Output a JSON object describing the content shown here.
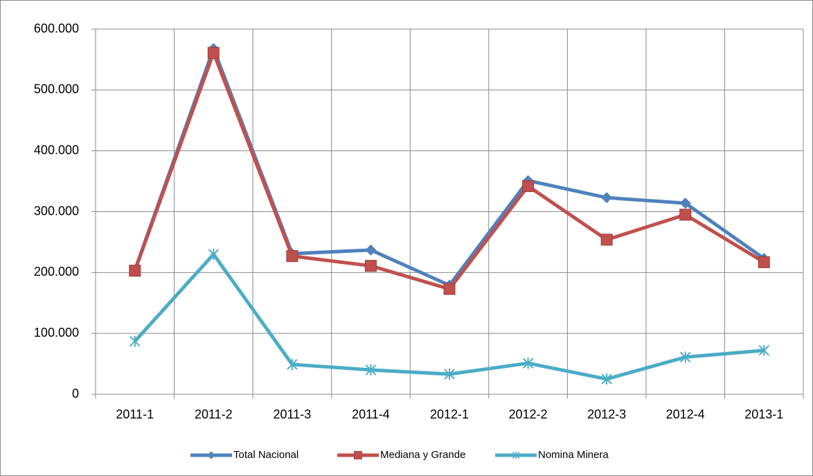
{
  "chart_data": {
    "type": "line",
    "categories": [
      "2011-1",
      "2011-2",
      "2011-3",
      "2011-4",
      "2012-1",
      "2012-2",
      "2012-3",
      "2012-4",
      "2013-1"
    ],
    "series": [
      {
        "name": "Total Nacional",
        "color": "#4f81bd",
        "marker": "diamond",
        "values": [
          204000,
          568000,
          231000,
          237000,
          179000,
          351000,
          323000,
          314000,
          223000
        ]
      },
      {
        "name": "Mediana y Grande",
        "color": "#c0504d",
        "marker": "square",
        "values": [
          203000,
          561000,
          227000,
          211000,
          173000,
          342000,
          254000,
          295000,
          217000
        ]
      },
      {
        "name": "Nomina Minera",
        "color": "#4bacc6",
        "marker": "asterisk",
        "values": [
          87000,
          230000,
          49000,
          40000,
          33000,
          51000,
          25000,
          61000,
          72000
        ]
      }
    ],
    "ylim": [
      0,
      600000
    ],
    "yticks": [
      0,
      {
        "value": 100000,
        "label": "100.000"
      },
      {
        "value": 200000,
        "label": "200.000"
      },
      {
        "value": 300000,
        "label": "300.000"
      },
      {
        "value": 400000,
        "label": "400.000"
      },
      {
        "value": 500000,
        "label": "500.000"
      },
      {
        "value": 600000,
        "label": "600.000"
      }
    ],
    "grid": true,
    "legend": "bottom"
  }
}
